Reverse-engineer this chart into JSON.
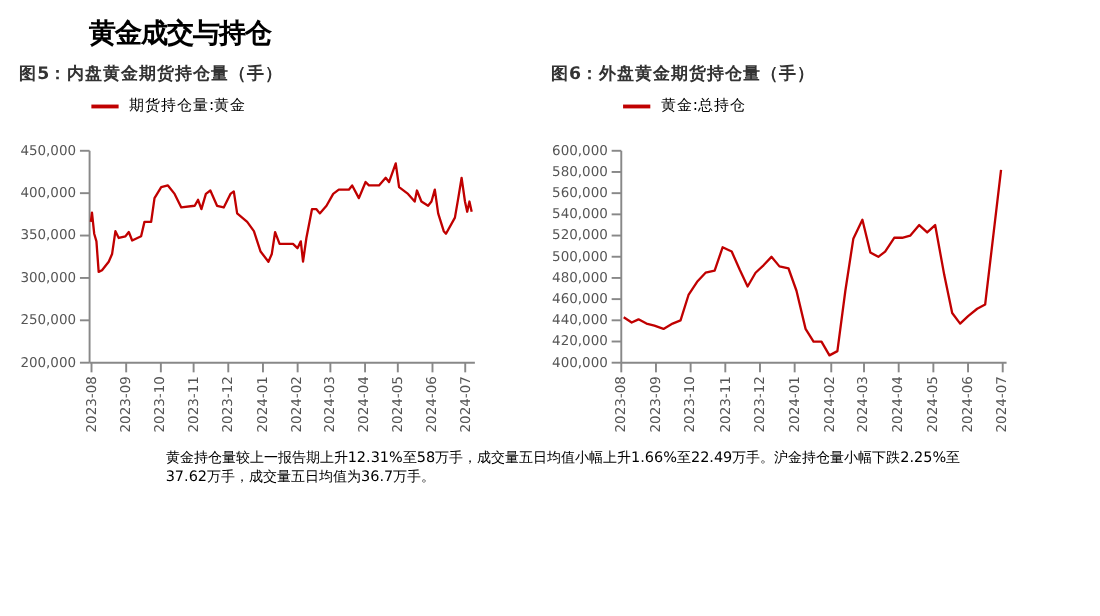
{
  "chart_data": [
    {
      "type": "line",
      "title": "图5：内盘黄金期货持仓量（手）",
      "legend": "top",
      "grid": false,
      "x": [
        "2023-08-01",
        "2023-08-02",
        "2023-08-04",
        "2023-08-06",
        "2023-08-08",
        "2023-08-11",
        "2023-08-17",
        "2023-08-20",
        "2023-08-23",
        "2023-08-26",
        "2023-09-01",
        "2023-09-04",
        "2023-09-07",
        "2023-09-15",
        "2023-09-18",
        "2023-09-24",
        "2023-09-27",
        "2023-10-03",
        "2023-10-09",
        "2023-10-15",
        "2023-10-21",
        "2023-11-02",
        "2023-11-05",
        "2023-11-08",
        "2023-11-12",
        "2023-11-16",
        "2023-11-22",
        "2023-11-28",
        "2023-12-04",
        "2023-12-07",
        "2023-12-10",
        "2023-12-19",
        "2023-12-25",
        "2023-12-31",
        "2024-01-07",
        "2024-01-10",
        "2024-01-13",
        "2024-01-17",
        "2024-01-29",
        "2024-02-02",
        "2024-02-05",
        "2024-02-07",
        "2024-02-10",
        "2024-02-15",
        "2024-02-19",
        "2024-02-22",
        "2024-02-28",
        "2024-03-05",
        "2024-03-10",
        "2024-03-19",
        "2024-03-22",
        "2024-03-28",
        "2024-04-03",
        "2024-04-06",
        "2024-04-15",
        "2024-04-21",
        "2024-04-24",
        "2024-04-30",
        "2024-05-03",
        "2024-05-11",
        "2024-05-17",
        "2024-05-19",
        "2024-05-23",
        "2024-05-29",
        "2024-06-01",
        "2024-06-04",
        "2024-06-07",
        "2024-06-12",
        "2024-06-14",
        "2024-06-22",
        "2024-06-25",
        "2024-06-28",
        "2024-07-01",
        "2024-07-03",
        "2024-07-05",
        "2024-07-07"
      ],
      "series": [
        {
          "name": "期货持仓量:黄金",
          "color": "#c00000",
          "values": [
            365000,
            376000,
            351000,
            342000,
            306000,
            308000,
            318000,
            327000,
            354000,
            346000,
            348000,
            353000,
            343000,
            348000,
            365000,
            365000,
            393000,
            406000,
            408000,
            398000,
            382000,
            384000,
            391000,
            380000,
            398000,
            402000,
            384000,
            382000,
            398000,
            401000,
            375000,
            365000,
            354000,
            330000,
            318000,
            327000,
            353000,
            339000,
            339000,
            334000,
            342000,
            318000,
            346000,
            380000,
            380000,
            375000,
            384000,
            398000,
            403000,
            403000,
            408000,
            393000,
            412000,
            408000,
            408000,
            417000,
            412000,
            434000,
            406000,
            398000,
            389000,
            402000,
            389000,
            384000,
            389000,
            403000,
            375000,
            354000,
            351000,
            370000,
            393000,
            417000,
            389000,
            377000,
            389000,
            377000
          ]
        }
      ],
      "xlim": [
        "2023-07-30",
        "2024-07-09"
      ],
      "xticks": [
        "2023-08",
        "2023-09",
        "2023-10",
        "2023-11",
        "2023-12",
        "2024-01",
        "2024-02",
        "2024-03",
        "2024-04",
        "2024-05",
        "2024-06",
        "2024-07"
      ],
      "ylim": [
        200000,
        450000
      ],
      "yticks": [
        {
          "value": 200000,
          "label": "200,000"
        },
        {
          "value": 250000,
          "label": "250,000"
        },
        {
          "value": 300000,
          "label": "300,000"
        },
        {
          "value": 350000,
          "label": "350,000"
        },
        {
          "value": 400000,
          "label": "400,000"
        },
        {
          "value": 450000,
          "label": "450,000"
        }
      ]
    },
    {
      "type": "line",
      "title": "图6：外盘黄金期货持仓量（手）",
      "legend": "top",
      "grid": false,
      "x": [
        "2023-08-04",
        "2023-08-11",
        "2023-08-17",
        "2023-08-24",
        "2023-08-31",
        "2023-09-08",
        "2023-09-16",
        "2023-09-23",
        "2023-09-30",
        "2023-10-08",
        "2023-10-15",
        "2023-10-23",
        "2023-10-30",
        "2023-11-07",
        "2023-11-14",
        "2023-11-21",
        "2023-11-28",
        "2023-12-05",
        "2023-12-12",
        "2023-12-19",
        "2023-12-27",
        "2024-01-03",
        "2024-01-11",
        "2024-01-18",
        "2024-01-25",
        "2024-02-01",
        "2024-02-08",
        "2024-02-15",
        "2024-02-22",
        "2024-03-01",
        "2024-03-08",
        "2024-03-15",
        "2024-03-21",
        "2024-03-29",
        "2024-04-05",
        "2024-04-12",
        "2024-04-20",
        "2024-04-27",
        "2024-05-04",
        "2024-05-12",
        "2024-05-19",
        "2024-05-26",
        "2024-06-02",
        "2024-06-10",
        "2024-06-17",
        "2024-07-01"
      ],
      "series": [
        {
          "name": "黄金:总持仓",
          "color": "#c00000",
          "values": [
            442000,
            437000,
            440000,
            436000,
            434000,
            431000,
            436000,
            439000,
            463000,
            476000,
            484000,
            486000,
            508000,
            504000,
            487000,
            471000,
            484000,
            491000,
            499000,
            490000,
            488000,
            467000,
            431000,
            419000,
            419000,
            406000,
            410000,
            467000,
            516000,
            534000,
            503000,
            499000,
            504000,
            517000,
            517000,
            519000,
            529000,
            522000,
            529000,
            482000,
            446000,
            436000,
            443000,
            450000,
            454000,
            581000
          ]
        }
      ],
      "xlim": [
        "2023-08-01",
        "2024-07-05"
      ],
      "xticks": [
        "2023-08",
        "2023-09",
        "2023-10",
        "2023-11",
        "2023-12",
        "2024-01",
        "2024-02",
        "2024-03",
        "2024-04",
        "2024-05",
        "2024-06",
        "2024-07"
      ],
      "ylim": [
        400000,
        600000
      ],
      "yticks": [
        {
          "value": 400000,
          "label": "400,000"
        },
        {
          "value": 420000,
          "label": "420,000"
        },
        {
          "value": 440000,
          "label": "440,000"
        },
        {
          "value": 460000,
          "label": "460,000"
        },
        {
          "value": 480000,
          "label": "480,000"
        },
        {
          "value": 500000,
          "label": "500,000"
        },
        {
          "value": 520000,
          "label": "520,000"
        },
        {
          "value": 540000,
          "label": "540,000"
        },
        {
          "value": 560000,
          "label": "560,000"
        },
        {
          "value": 580000,
          "label": "580,000"
        },
        {
          "value": 600000,
          "label": "600,000"
        }
      ]
    },
    {
      "type": "other",
      "annotations": [
        "黄金成交与持仓",
        "黄金持仓量较上一报告期上升12.31%至58万手，成交量五日均值小幅上升1.66%至22.49万手。沪金持仓量小幅下跌2.25%至",
        "37.62万手，成交量五日均值为36.7万手。"
      ]
    }
  ]
}
